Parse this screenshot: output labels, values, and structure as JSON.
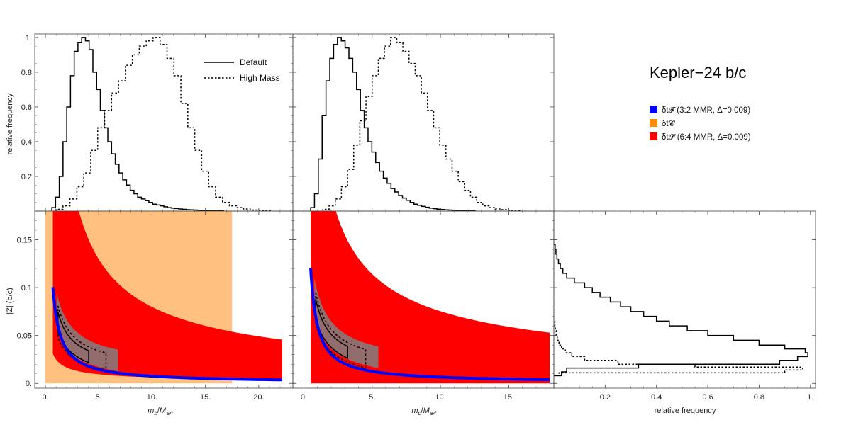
{
  "chart_data": {
    "type": "histogram-corner",
    "title": "Kepler−24 b/c",
    "legend_top": [
      {
        "label": "Default",
        "style": "solid"
      },
      {
        "label": "High Mass",
        "style": "dotted"
      }
    ],
    "legend_regions": [
      {
        "label": "δt𝓕 (3:2 MMR, Δ=0.009)",
        "color": "#0000ff"
      },
      {
        "label": "δt𝓒",
        "color": "#ff8c00"
      },
      {
        "label": "δt𝓢 (6:4 MMR, Δ=0.009)",
        "color": "#ff0000"
      }
    ],
    "colors": {
      "chopping": "#ffc080",
      "secular": "#ff0000",
      "resonant": "#0000ff",
      "posterior": "#808080"
    },
    "panels": {
      "mb_hist": {
        "ylabel": "relative frequency",
        "xlim": [
          -1,
          23.2
        ],
        "ylim": [
          0,
          1.02
        ],
        "yticks": [
          0.2,
          0.4,
          0.6,
          0.8,
          1.0
        ],
        "ytick_labels": [
          "0.2",
          "0.4",
          "0.6",
          "0.8",
          "1."
        ],
        "series": [
          {
            "name": "Default",
            "style": "solid",
            "bin_width": 0.35,
            "x_start": 0.6,
            "values": [
              0.02,
              0.08,
              0.2,
              0.4,
              0.6,
              0.78,
              0.92,
              0.97,
              1.0,
              0.98,
              0.93,
              0.8,
              0.7,
              0.58,
              0.48,
              0.4,
              0.33,
              0.27,
              0.22,
              0.18,
              0.15,
              0.12,
              0.1,
              0.08,
              0.07,
              0.06,
              0.05,
              0.04,
              0.035,
              0.03,
              0.025,
              0.02,
              0.017,
              0.015,
              0.012,
              0.01,
              0.008,
              0.007,
              0.006,
              0.005,
              0.004,
              0.003,
              0.003,
              0.002,
              0.002,
              0.001
            ]
          },
          {
            "name": "High Mass",
            "style": "dotted",
            "bin_width": 0.65,
            "x_start": 1.0,
            "values": [
              0.01,
              0.03,
              0.07,
              0.14,
              0.22,
              0.35,
              0.48,
              0.58,
              0.68,
              0.75,
              0.84,
              0.9,
              0.95,
              0.98,
              1.0,
              0.96,
              0.88,
              0.78,
              0.62,
              0.48,
              0.35,
              0.23,
              0.14,
              0.08,
              0.05,
              0.03,
              0.02,
              0.012,
              0.006,
              0.003,
              0.002
            ]
          }
        ]
      },
      "mc_hist": {
        "xlim": [
          -0.8,
          18.3
        ],
        "ylim": [
          0,
          1.02
        ],
        "series": [
          {
            "name": "Default",
            "style": "solid",
            "bin_width": 0.28,
            "x_start": 0.5,
            "values": [
              0.02,
              0.1,
              0.3,
              0.55,
              0.75,
              0.88,
              0.96,
              1.0,
              0.98,
              0.94,
              0.88,
              0.8,
              0.7,
              0.58,
              0.48,
              0.4,
              0.34,
              0.28,
              0.23,
              0.19,
              0.16,
              0.13,
              0.11,
              0.09,
              0.075,
              0.062,
              0.05,
              0.04,
              0.033,
              0.027,
              0.022,
              0.017,
              0.014,
              0.011,
              0.009,
              0.007,
              0.006,
              0.005,
              0.004,
              0.003,
              0.003,
              0.002,
              0.002
            ]
          },
          {
            "name": "High Mass",
            "style": "dotted",
            "bin_width": 0.45,
            "x_start": 1.4,
            "values": [
              0.01,
              0.03,
              0.07,
              0.14,
              0.24,
              0.38,
              0.52,
              0.66,
              0.78,
              0.88,
              0.95,
              1.0,
              0.97,
              0.92,
              0.85,
              0.78,
              0.68,
              0.58,
              0.48,
              0.38,
              0.3,
              0.23,
              0.17,
              0.12,
              0.08,
              0.05,
              0.03,
              0.02,
              0.012,
              0.008,
              0.004,
              0.002
            ]
          }
        ]
      },
      "mb_z": {
        "xlabel": "m_b/M_⊕*",
        "ylabel": "|Z| (b/c)",
        "xlim": [
          -1,
          23.2
        ],
        "ylim": [
          -0.005,
          0.18
        ],
        "xticks": [
          0,
          5,
          10,
          15,
          20
        ],
        "xtick_labels": [
          "0.",
          "5.",
          "10.",
          "15.",
          "20."
        ],
        "yticks": [
          0,
          0.05,
          0.1,
          0.15
        ],
        "ytick_labels": [
          "0.",
          "0.05",
          "0.1",
          "0.15"
        ],
        "chopping_region": {
          "x": [
            0,
            17.5
          ],
          "y": [
            0,
            0.18
          ]
        },
        "secular_band": {
          "x_range": [
            0.7,
            22.2
          ],
          "lower": {
            "a": 0.025,
            "b": 0.6
          },
          "upper": {
            "a": 0.4,
            "b": 0.7
          }
        },
        "resonant_curve": {
          "a": 0.07,
          "x_range": [
            0.7,
            22.2
          ]
        },
        "contours": {
          "center": [
            1.8,
            0.045
          ]
        }
      },
      "mc_z": {
        "xlabel": "m_c/M_⊕*",
        "xlim": [
          -0.8,
          18.3
        ],
        "ylim": [
          -0.005,
          0.18
        ],
        "xticks": [
          0,
          5,
          10,
          15
        ],
        "xtick_labels": [
          "0.",
          "5.",
          "10.",
          "15."
        ],
        "secular_band": {
          "x_range": [
            0.5,
            18
          ],
          "lower": {
            "a": -0.01,
            "b": 0.5
          },
          "upper": {
            "a": 0.3,
            "b": 0.6
          }
        },
        "resonant_curve": {
          "a": 0.06,
          "x_range": [
            0.5,
            18
          ]
        }
      },
      "z_hist": {
        "xlabel": "relative frequency",
        "xlim": [
          0,
          1.02
        ],
        "ylim": [
          -0.005,
          0.18
        ],
        "xticks": [
          0.2,
          0.4,
          0.6,
          0.8,
          1.0
        ],
        "xtick_labels": [
          "0.2",
          "0.4",
          "0.6",
          "0.8",
          "1."
        ],
        "series": [
          {
            "name": "Default",
            "style": "solid",
            "bins": [
              [
                0.008,
                0.012,
                0.03
              ],
              [
                0.012,
                0.016,
                0.05
              ],
              [
                0.016,
                0.02,
                0.33
              ],
              [
                0.02,
                0.024,
                0.88
              ],
              [
                0.024,
                0.028,
                0.95
              ],
              [
                0.028,
                0.032,
                0.99
              ],
              [
                0.032,
                0.036,
                0.98
              ],
              [
                0.036,
                0.04,
                0.9
              ],
              [
                0.04,
                0.045,
                0.8
              ],
              [
                0.045,
                0.05,
                0.7
              ],
              [
                0.05,
                0.055,
                0.6
              ],
              [
                0.055,
                0.06,
                0.52
              ],
              [
                0.06,
                0.065,
                0.45
              ],
              [
                0.065,
                0.07,
                0.4
              ],
              [
                0.07,
                0.075,
                0.35
              ],
              [
                0.075,
                0.08,
                0.3
              ],
              [
                0.08,
                0.085,
                0.26
              ],
              [
                0.085,
                0.09,
                0.22
              ],
              [
                0.09,
                0.095,
                0.18
              ],
              [
                0.095,
                0.1,
                0.15
              ],
              [
                0.1,
                0.105,
                0.12
              ],
              [
                0.105,
                0.11,
                0.08
              ],
              [
                0.11,
                0.115,
                0.05
              ],
              [
                0.115,
                0.12,
                0.035
              ],
              [
                0.12,
                0.125,
                0.025
              ],
              [
                0.125,
                0.13,
                0.018
              ],
              [
                0.13,
                0.135,
                0.012
              ],
              [
                0.135,
                0.14,
                0.008
              ],
              [
                0.14,
                0.145,
                0.005
              ]
            ]
          },
          {
            "name": "High Mass",
            "style": "dotted",
            "bins": [
              [
                0.008,
                0.011,
                0.02
              ],
              [
                0.011,
                0.014,
                0.9
              ],
              [
                0.014,
                0.017,
                0.97
              ],
              [
                0.017,
                0.02,
                0.55
              ],
              [
                0.02,
                0.024,
                0.25
              ],
              [
                0.024,
                0.028,
                0.12
              ],
              [
                0.028,
                0.032,
                0.07
              ],
              [
                0.032,
                0.036,
                0.045
              ],
              [
                0.036,
                0.04,
                0.03
              ],
              [
                0.04,
                0.045,
                0.02
              ],
              [
                0.045,
                0.05,
                0.013
              ],
              [
                0.05,
                0.055,
                0.009
              ],
              [
                0.055,
                0.06,
                0.006
              ],
              [
                0.06,
                0.065,
                0.004
              ]
            ]
          }
        ]
      }
    }
  }
}
